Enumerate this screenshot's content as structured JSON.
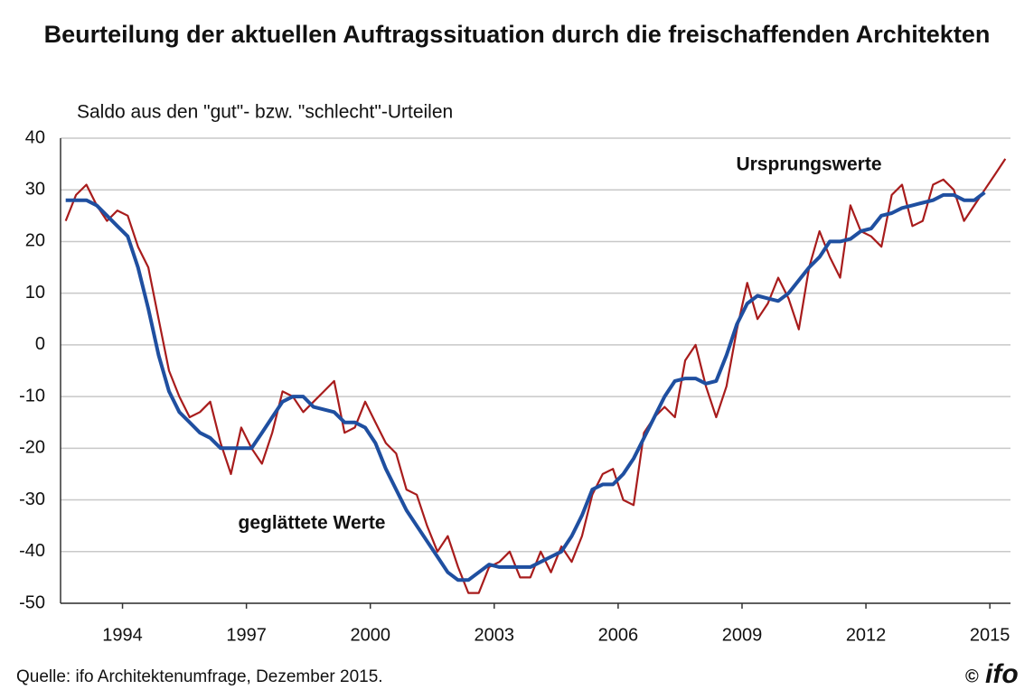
{
  "chart_data": {
    "type": "line",
    "title": "Beurteilung der aktuellen Auftragssituation durch die freischaffenden Architekten",
    "subtitle": "Saldo aus den \"gut\"- bzw. \"schlecht\"-Urteilen",
    "source": "Quelle: ifo Architektenumfrage, Dezember 2015.",
    "copyright": "©",
    "logo": "ifo",
    "annotations": [
      "Ursprungswerte",
      "geglättete Werte"
    ],
    "x": [
      1993.125,
      1993.375,
      1993.625,
      1993.875,
      1994.125,
      1994.375,
      1994.625,
      1994.875,
      1995.125,
      1995.375,
      1995.625,
      1995.875,
      1996.125,
      1996.375,
      1996.625,
      1996.875,
      1997.125,
      1997.375,
      1997.625,
      1997.875,
      1998.125,
      1998.375,
      1998.625,
      1998.875,
      1999.125,
      1999.375,
      1999.625,
      1999.875,
      2000.125,
      2000.375,
      2000.625,
      2000.875,
      2001.125,
      2001.375,
      2001.625,
      2001.875,
      2002.125,
      2002.375,
      2002.625,
      2002.875,
      2003.125,
      2003.375,
      2003.625,
      2003.875,
      2004.125,
      2004.375,
      2004.625,
      2004.875,
      2005.125,
      2005.375,
      2005.625,
      2005.875,
      2006.125,
      2006.375,
      2006.625,
      2006.875,
      2007.125,
      2007.375,
      2007.625,
      2007.875,
      2008.125,
      2008.375,
      2008.625,
      2008.875,
      2009.125,
      2009.375,
      2009.625,
      2009.875,
      2010.125,
      2010.375,
      2010.625,
      2010.875,
      2011.125,
      2011.375,
      2011.625,
      2011.875,
      2012.125,
      2012.375,
      2012.625,
      2012.875,
      2013.125,
      2013.375,
      2013.625,
      2013.875,
      2014.125,
      2014.375,
      2014.625,
      2014.875,
      2015.125,
      2015.375,
      2015.625,
      2015.875
    ],
    "series": [
      {
        "name": "Ursprungswerte",
        "color": "#a81c1c",
        "values": [
          24,
          29,
          31,
          27,
          24,
          26,
          25,
          19,
          15,
          5,
          -5,
          -10,
          -14,
          -13,
          -11,
          -19,
          -25,
          -16,
          -20,
          -23,
          -17,
          -9,
          -10,
          -13,
          -11,
          -9,
          -7,
          -17,
          -16,
          -11,
          -15,
          -19,
          -21,
          -28,
          -29,
          -35,
          -40,
          -37,
          -43,
          -48,
          -48,
          -43,
          -42,
          -40,
          -45,
          -45,
          -40,
          -44,
          -39,
          -42,
          -37,
          -29,
          -25,
          -24,
          -30,
          -31,
          -17,
          -14,
          -12,
          -14,
          -3,
          0,
          -8,
          -14,
          -8,
          3,
          12,
          5,
          8,
          13,
          9,
          3,
          15,
          22,
          17,
          13,
          27,
          22,
          21,
          19,
          29,
          31,
          23,
          24,
          31,
          32,
          30,
          24,
          27,
          30,
          33,
          36
        ]
      },
      {
        "name": "geglättete Werte",
        "color": "#1f4fa0",
        "values": [
          28,
          28,
          28,
          27,
          25,
          23,
          21,
          15,
          7,
          -2,
          -9,
          -13,
          -15,
          -17,
          -18,
          -20,
          -20,
          -20,
          -20,
          -17,
          -14,
          -11,
          -10,
          -10,
          -12,
          -12.5,
          -13,
          -15,
          -15,
          -16,
          -19,
          -24,
          -28,
          -32,
          -35,
          -38,
          -41,
          -44,
          -45.5,
          -45.5,
          -44,
          -42.5,
          -43,
          -43,
          -43,
          -43,
          -42,
          -41,
          -40,
          -37,
          -33,
          -28,
          -27,
          -27,
          -25,
          -22,
          -18,
          -14,
          -10,
          -7,
          -6.5,
          -6.5,
          -7.5,
          -7,
          -2,
          4,
          8,
          9.5,
          9,
          8.5,
          10,
          12.5,
          15,
          17,
          20,
          20,
          20.5,
          22,
          22.5,
          25,
          25.5,
          26.5,
          27,
          27.5,
          28,
          29,
          29,
          28,
          28,
          29.5,
          null,
          null
        ]
      }
    ],
    "xlim": [
      1993,
      2016
    ],
    "xticks": [
      {
        "value": 1994.5,
        "label": "1994"
      },
      {
        "value": 1997.5,
        "label": "1997"
      },
      {
        "value": 2000.5,
        "label": "2000"
      },
      {
        "value": 2003.5,
        "label": "2003"
      },
      {
        "value": 2006.5,
        "label": "2006"
      },
      {
        "value": 2009.5,
        "label": "2009"
      },
      {
        "value": 2012.5,
        "label": "2012"
      },
      {
        "value": 2015.5,
        "label": "2015"
      }
    ],
    "ylim": [
      -50,
      40
    ],
    "yticks": [
      -50,
      -40,
      -30,
      -20,
      -10,
      0,
      10,
      20,
      30,
      40
    ],
    "grid": true
  }
}
